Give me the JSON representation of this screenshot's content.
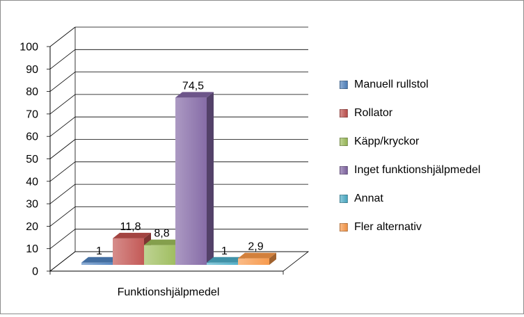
{
  "chart_data": {
    "type": "bar",
    "categories": [
      "Funktionshjälpmedel"
    ],
    "xlabel": "Funktionshjälpmedel",
    "ylim": [
      0,
      100
    ],
    "yticks": [
      0,
      10,
      20,
      30,
      40,
      50,
      60,
      70,
      80,
      90,
      100
    ],
    "grid": true,
    "legend_position": "right",
    "three_d": true,
    "series": [
      {
        "name": "Manuell rullstol",
        "values": [
          1
        ],
        "label": "1",
        "color": "#4f81bd"
      },
      {
        "name": "Rollator",
        "values": [
          11.8
        ],
        "label": "11,8",
        "color": "#c0504d"
      },
      {
        "name": "Käpp/kryckor",
        "values": [
          8.8
        ],
        "label": "8,8",
        "color": "#9bbb59"
      },
      {
        "name": "Inget funktionshjälpmedel",
        "values": [
          74.5
        ],
        "label": "74,5",
        "color": "#8064a2"
      },
      {
        "name": "Annat",
        "values": [
          1
        ],
        "label": "1",
        "color": "#4bacc6"
      },
      {
        "name": "Fler alternativ",
        "values": [
          2.9
        ],
        "label": "2,9",
        "color": "#f79646"
      }
    ]
  }
}
